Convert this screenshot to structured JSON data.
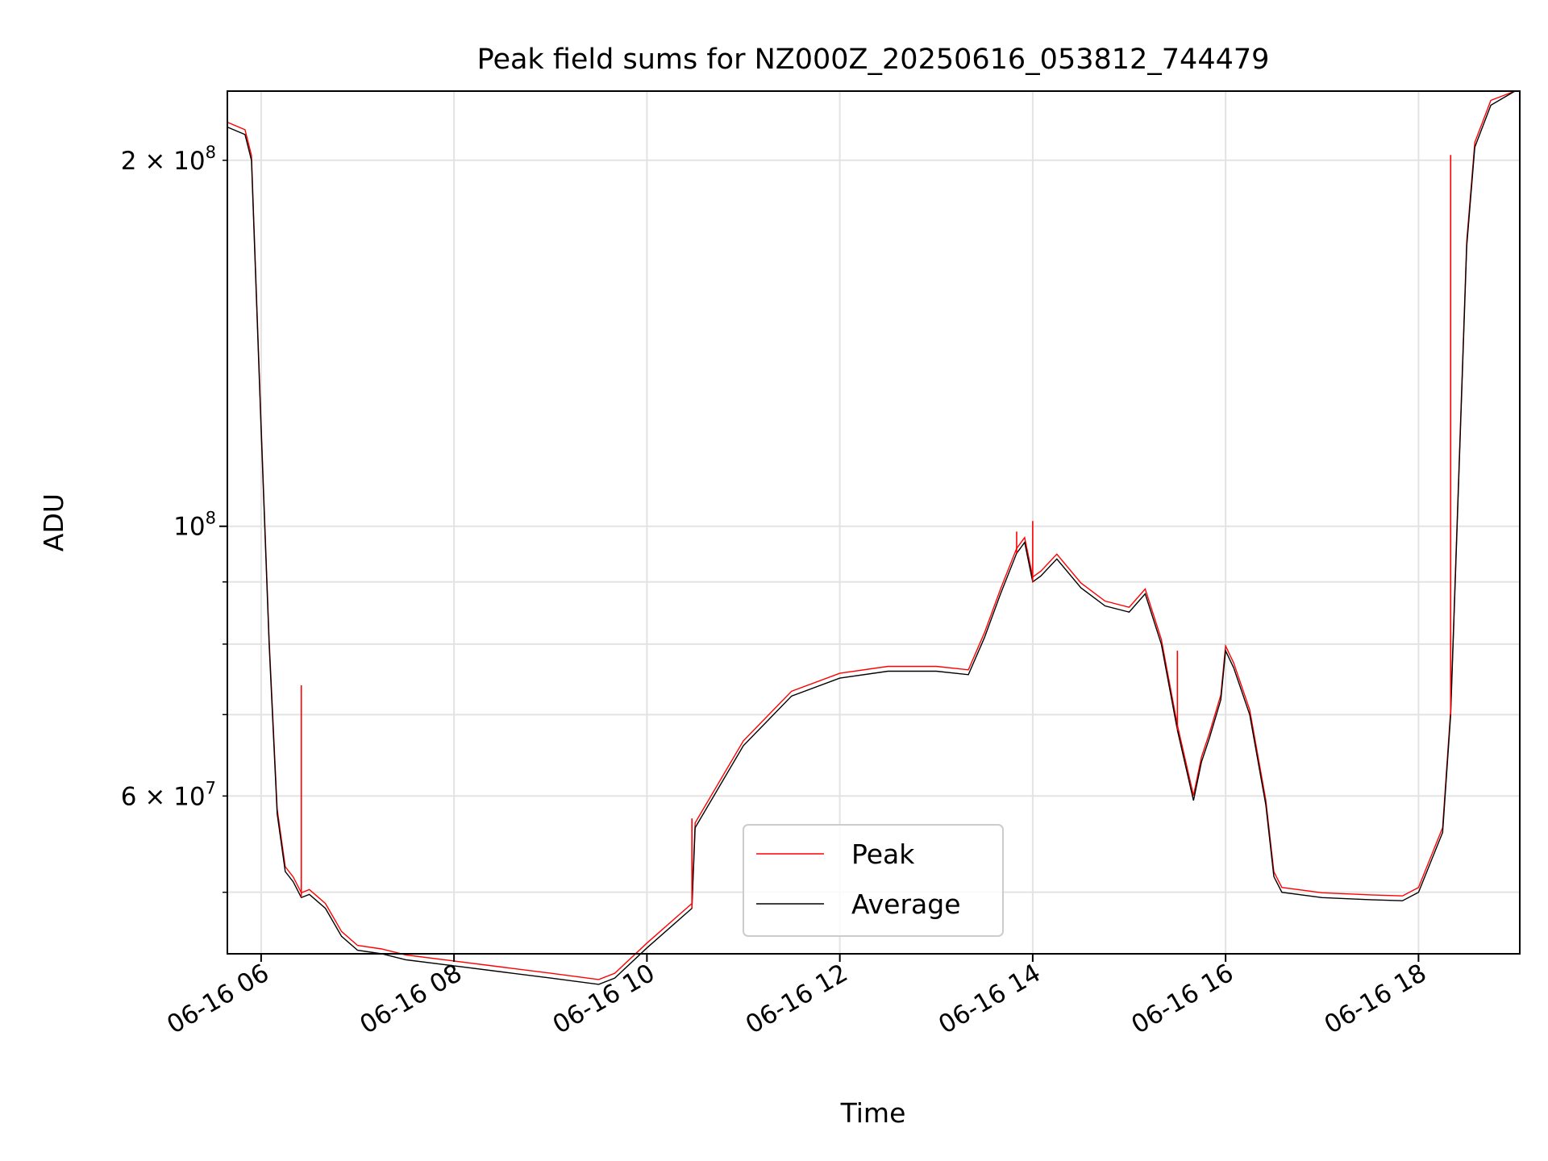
{
  "chart_data": {
    "type": "line",
    "title": "Peak field sums for NZ000Z_20250616_053812_744479",
    "xlabel": "Time",
    "ylabel": "ADU",
    "y_scale": "log",
    "grid": true,
    "xlim": [
      "2025-06-16 05:39",
      "2025-06-16 19:03"
    ],
    "ylim": [
      44500000,
      228000000
    ],
    "x_ticks": [
      "06-16 06",
      "06-16 08",
      "06-16 10",
      "06-16 12",
      "06-16 14",
      "06-16 16",
      "06-16 18"
    ],
    "y_ticks_major": [
      {
        "value": 100000000,
        "base": "10",
        "exp": "8"
      }
    ],
    "y_ticks_minor_labeled": [
      {
        "value": 60000000,
        "mantissa": "6",
        "base": "10",
        "exp": "7"
      },
      {
        "value": 200000000,
        "mantissa": "2",
        "base": "10",
        "exp": "8"
      }
    ],
    "legend_position": "lower-center",
    "series": [
      {
        "name": "Average",
        "color": "#000000",
        "x": [
          "2025-06-16 05:39",
          "2025-06-16 05:50",
          "2025-06-16 05:54",
          "2025-06-16 06:00",
          "2025-06-16 06:05",
          "2025-06-16 06:10",
          "2025-06-16 06:15",
          "2025-06-16 06:20",
          "2025-06-16 06:25",
          "2025-06-16 06:30",
          "2025-06-16 06:40",
          "2025-06-16 06:50",
          "2025-06-16 07:00",
          "2025-06-16 07:15",
          "2025-06-16 07:30",
          "2025-06-16 08:00",
          "2025-06-16 08:30",
          "2025-06-16 09:00",
          "2025-06-16 09:30",
          "2025-06-16 09:40",
          "2025-06-16 10:00",
          "2025-06-16 10:28",
          "2025-06-16 10:30",
          "2025-06-16 11:00",
          "2025-06-16 11:30",
          "2025-06-16 12:00",
          "2025-06-16 12:30",
          "2025-06-16 13:00",
          "2025-06-16 13:20",
          "2025-06-16 13:30",
          "2025-06-16 13:40",
          "2025-06-16 13:50",
          "2025-06-16 13:55",
          "2025-06-16 14:00",
          "2025-06-16 14:05",
          "2025-06-16 14:15",
          "2025-06-16 14:30",
          "2025-06-16 14:45",
          "2025-06-16 15:00",
          "2025-06-16 15:10",
          "2025-06-16 15:20",
          "2025-06-16 15:30",
          "2025-06-16 15:40",
          "2025-06-16 15:45",
          "2025-06-16 15:50",
          "2025-06-16 15:57",
          "2025-06-16 16:00",
          "2025-06-16 16:05",
          "2025-06-16 16:15",
          "2025-06-16 16:25",
          "2025-06-16 16:30",
          "2025-06-16 16:35",
          "2025-06-16 17:00",
          "2025-06-16 17:30",
          "2025-06-16 17:50",
          "2025-06-16 18:00",
          "2025-06-16 18:15",
          "2025-06-16 18:20",
          "2025-06-16 18:30",
          "2025-06-16 18:35",
          "2025-06-16 18:45",
          "2025-06-16 19:00"
        ],
        "values": [
          213000000,
          210000000,
          200000000,
          120000000,
          80000000,
          58000000,
          52000000,
          51000000,
          49500000,
          49800000,
          48500000,
          46000000,
          44800000,
          44500000,
          44000000,
          43500000,
          43000000,
          42500000,
          42000000,
          42500000,
          45000000,
          48500000,
          56500000,
          66000000,
          72500000,
          75000000,
          76000000,
          76000000,
          75500000,
          81000000,
          88000000,
          95000000,
          97000000,
          90000000,
          91000000,
          94000000,
          89000000,
          86000000,
          85000000,
          88000000,
          80000000,
          68000000,
          59500000,
          64000000,
          67000000,
          72000000,
          79000000,
          76500000,
          70000000,
          59000000,
          51500000,
          50000000,
          49500000,
          49300000,
          49200000,
          50000000,
          56000000,
          70000000,
          170000000,
          205000000,
          222000000,
          228000000
        ]
      },
      {
        "name": "Peak",
        "color": "#ff0000",
        "x": [
          "2025-06-16 06:25",
          "2025-06-16 10:28",
          "2025-06-16 13:50",
          "2025-06-16 14:00",
          "2025-06-16 15:30",
          "2025-06-16 18:20"
        ],
        "values": [
          74000000,
          57500000,
          99000000,
          101000000,
          79000000,
          202000000
        ]
      }
    ]
  }
}
